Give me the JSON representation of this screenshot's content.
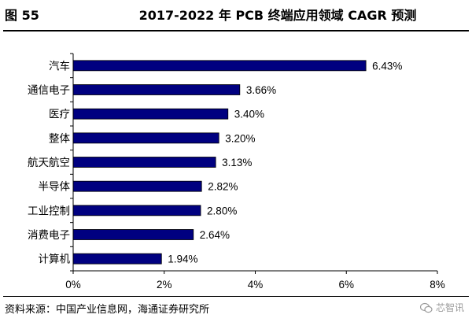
{
  "header": {
    "figure_label": "图 55",
    "title": "2017-2022 年 PCB 终端应用领域 CAGR 预测"
  },
  "footer": {
    "source": "资料来源：中国产业信息网，海通证券研究所",
    "watermark": "芯智讯",
    "watermark_icon": "wechat-icon"
  },
  "chart_data": {
    "type": "bar",
    "orientation": "horizontal",
    "categories": [
      "汽车",
      "通信电子",
      "医疗",
      "整体",
      "航天航空",
      "半导体",
      "工业控制",
      "消费电子",
      "计算机"
    ],
    "values": [
      6.43,
      3.66,
      3.4,
      3.2,
      3.13,
      2.82,
      2.8,
      2.64,
      1.94
    ],
    "value_labels": [
      "6.43%",
      "3.66%",
      "3.40%",
      "3.20%",
      "3.13%",
      "2.82%",
      "2.80%",
      "2.64%",
      "1.94%"
    ],
    "xlim": [
      0,
      8
    ],
    "x_ticks": [
      0,
      2,
      4,
      6,
      8
    ],
    "x_tick_labels": [
      "0%",
      "2%",
      "4%",
      "6%",
      "8%"
    ],
    "bar_color": "#000080",
    "grid": false,
    "legend": "none"
  }
}
